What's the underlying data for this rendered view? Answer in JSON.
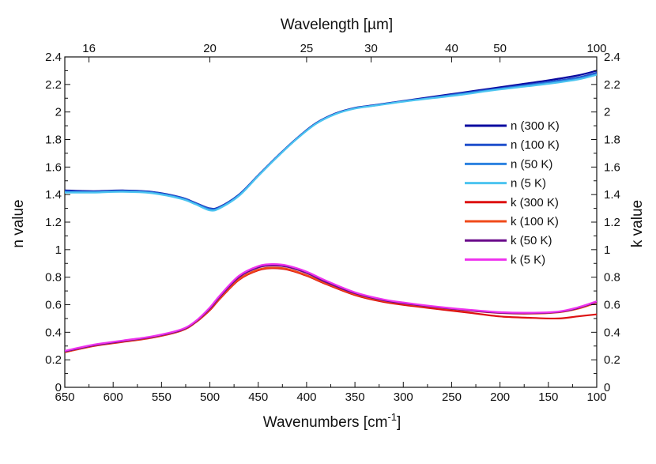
{
  "chart_data": {
    "type": "line",
    "title": "",
    "xlabel_bottom": "Wavenumbers [cm",
    "xlabel_bottom_sup": "-1",
    "xlabel_bottom_close": "]",
    "xlabel_top": "Wavelength [µm]",
    "ylabel_left": "n value",
    "ylabel_right": "k value",
    "xlim": [
      650,
      100
    ],
    "ylim": [
      0,
      2.4
    ],
    "x_ticks": [
      650,
      600,
      550,
      500,
      450,
      400,
      350,
      300,
      250,
      200,
      150,
      100
    ],
    "y_ticks": [
      0,
      0.2,
      0.4,
      0.6,
      0.8,
      1,
      1.2,
      1.4,
      1.6,
      1.8,
      2,
      2.2,
      2.4
    ],
    "y_tick_labels": [
      "0",
      "0.2",
      "0.4",
      "0.6",
      "0.8",
      "1",
      "1.2",
      "1.4",
      "1.6",
      "1.8",
      "2",
      "2.2",
      "2.4"
    ],
    "top_ticks": [
      {
        "label": "16",
        "wavenumber": 625
      },
      {
        "label": "20",
        "wavenumber": 500
      },
      {
        "label": "25",
        "wavenumber": 400
      },
      {
        "label": "30",
        "wavenumber": 333.33
      },
      {
        "label": "40",
        "wavenumber": 250
      },
      {
        "label": "50",
        "wavenumber": 200
      },
      {
        "label": "100",
        "wavenumber": 100
      }
    ],
    "legend_position": "right-middle",
    "series": [
      {
        "name": "n (300 K)",
        "color": "#0a0aa0",
        "x": [
          650,
          620,
          590,
          560,
          530,
          515,
          500,
          490,
          470,
          450,
          430,
          410,
          390,
          370,
          350,
          330,
          300,
          270,
          240,
          210,
          180,
          150,
          120,
          100
        ],
        "values": [
          1.43,
          1.425,
          1.43,
          1.42,
          1.38,
          1.34,
          1.3,
          1.31,
          1.4,
          1.54,
          1.68,
          1.81,
          1.92,
          1.99,
          2.03,
          2.05,
          2.08,
          2.11,
          2.14,
          2.17,
          2.2,
          2.23,
          2.265,
          2.3
        ]
      },
      {
        "name": "n (100 K)",
        "color": "#1f4fcc",
        "x": [
          650,
          620,
          590,
          560,
          530,
          515,
          500,
          490,
          470,
          450,
          430,
          410,
          390,
          370,
          350,
          330,
          300,
          270,
          240,
          210,
          180,
          150,
          120,
          100
        ],
        "values": [
          1.425,
          1.422,
          1.428,
          1.418,
          1.378,
          1.338,
          1.298,
          1.308,
          1.398,
          1.538,
          1.678,
          1.808,
          1.918,
          1.988,
          2.028,
          2.048,
          2.078,
          2.105,
          2.135,
          2.163,
          2.19,
          2.218,
          2.25,
          2.285
        ]
      },
      {
        "name": "n (50 K)",
        "color": "#2c82e0",
        "x": [
          650,
          620,
          590,
          560,
          530,
          515,
          500,
          490,
          470,
          450,
          430,
          410,
          390,
          370,
          350,
          330,
          300,
          270,
          240,
          210,
          180,
          150,
          120,
          100
        ],
        "values": [
          1.42,
          1.418,
          1.424,
          1.414,
          1.374,
          1.334,
          1.292,
          1.304,
          1.394,
          1.536,
          1.676,
          1.806,
          1.916,
          1.986,
          2.026,
          2.047,
          2.077,
          2.103,
          2.13,
          2.158,
          2.185,
          2.212,
          2.242,
          2.275
        ]
      },
      {
        "name": "n (5 K)",
        "color": "#4cc4f0",
        "x": [
          650,
          620,
          590,
          560,
          530,
          515,
          500,
          490,
          470,
          450,
          430,
          410,
          390,
          370,
          350,
          330,
          300,
          270,
          240,
          210,
          180,
          150,
          120,
          100
        ],
        "values": [
          1.415,
          1.415,
          1.42,
          1.41,
          1.37,
          1.33,
          1.285,
          1.3,
          1.39,
          1.535,
          1.675,
          1.805,
          1.915,
          1.985,
          2.025,
          2.045,
          2.075,
          2.1,
          2.125,
          2.155,
          2.18,
          2.205,
          2.235,
          2.27
        ]
      },
      {
        "name": "k (300 K)",
        "color": "#dd1111",
        "x": [
          650,
          620,
          590,
          560,
          530,
          515,
          500,
          490,
          470,
          450,
          435,
          420,
          400,
          380,
          350,
          320,
          290,
          260,
          230,
          200,
          170,
          140,
          120,
          100
        ],
        "values": [
          0.255,
          0.3,
          0.33,
          0.36,
          0.41,
          0.47,
          0.56,
          0.64,
          0.78,
          0.85,
          0.865,
          0.855,
          0.81,
          0.75,
          0.67,
          0.62,
          0.59,
          0.565,
          0.54,
          0.515,
          0.505,
          0.5,
          0.515,
          0.53
        ]
      },
      {
        "name": "k (100 K)",
        "color": "#f04a1a",
        "x": [
          650,
          620,
          590,
          560,
          530,
          515,
          500,
          490,
          470,
          450,
          435,
          420,
          400,
          380,
          350,
          320,
          290,
          260,
          230,
          200,
          170,
          140,
          120,
          100
        ],
        "values": [
          0.255,
          0.302,
          0.333,
          0.363,
          0.412,
          0.473,
          0.565,
          0.645,
          0.785,
          0.855,
          0.87,
          0.86,
          0.815,
          0.755,
          0.676,
          0.627,
          0.598,
          0.575,
          0.556,
          0.54,
          0.535,
          0.545,
          0.57,
          0.615
        ]
      },
      {
        "name": "k (50 K)",
        "color": "#6a0a8a",
        "x": [
          650,
          620,
          590,
          560,
          530,
          515,
          500,
          490,
          470,
          450,
          435,
          420,
          400,
          380,
          350,
          320,
          290,
          260,
          230,
          200,
          170,
          140,
          120,
          100
        ],
        "values": [
          0.26,
          0.305,
          0.336,
          0.366,
          0.415,
          0.476,
          0.572,
          0.655,
          0.8,
          0.87,
          0.885,
          0.875,
          0.83,
          0.765,
          0.683,
          0.632,
          0.602,
          0.578,
          0.558,
          0.542,
          0.538,
          0.547,
          0.575,
          0.62
        ]
      },
      {
        "name": "k (5 K)",
        "color": "#ee33ee",
        "x": [
          650,
          620,
          590,
          560,
          530,
          515,
          500,
          490,
          470,
          450,
          435,
          420,
          400,
          380,
          350,
          320,
          290,
          260,
          230,
          200,
          170,
          140,
          120,
          100
        ],
        "values": [
          0.265,
          0.31,
          0.34,
          0.37,
          0.42,
          0.48,
          0.58,
          0.665,
          0.81,
          0.88,
          0.895,
          0.885,
          0.84,
          0.775,
          0.69,
          0.638,
          0.607,
          0.582,
          0.562,
          0.546,
          0.542,
          0.55,
          0.58,
          0.625
        ]
      }
    ]
  }
}
